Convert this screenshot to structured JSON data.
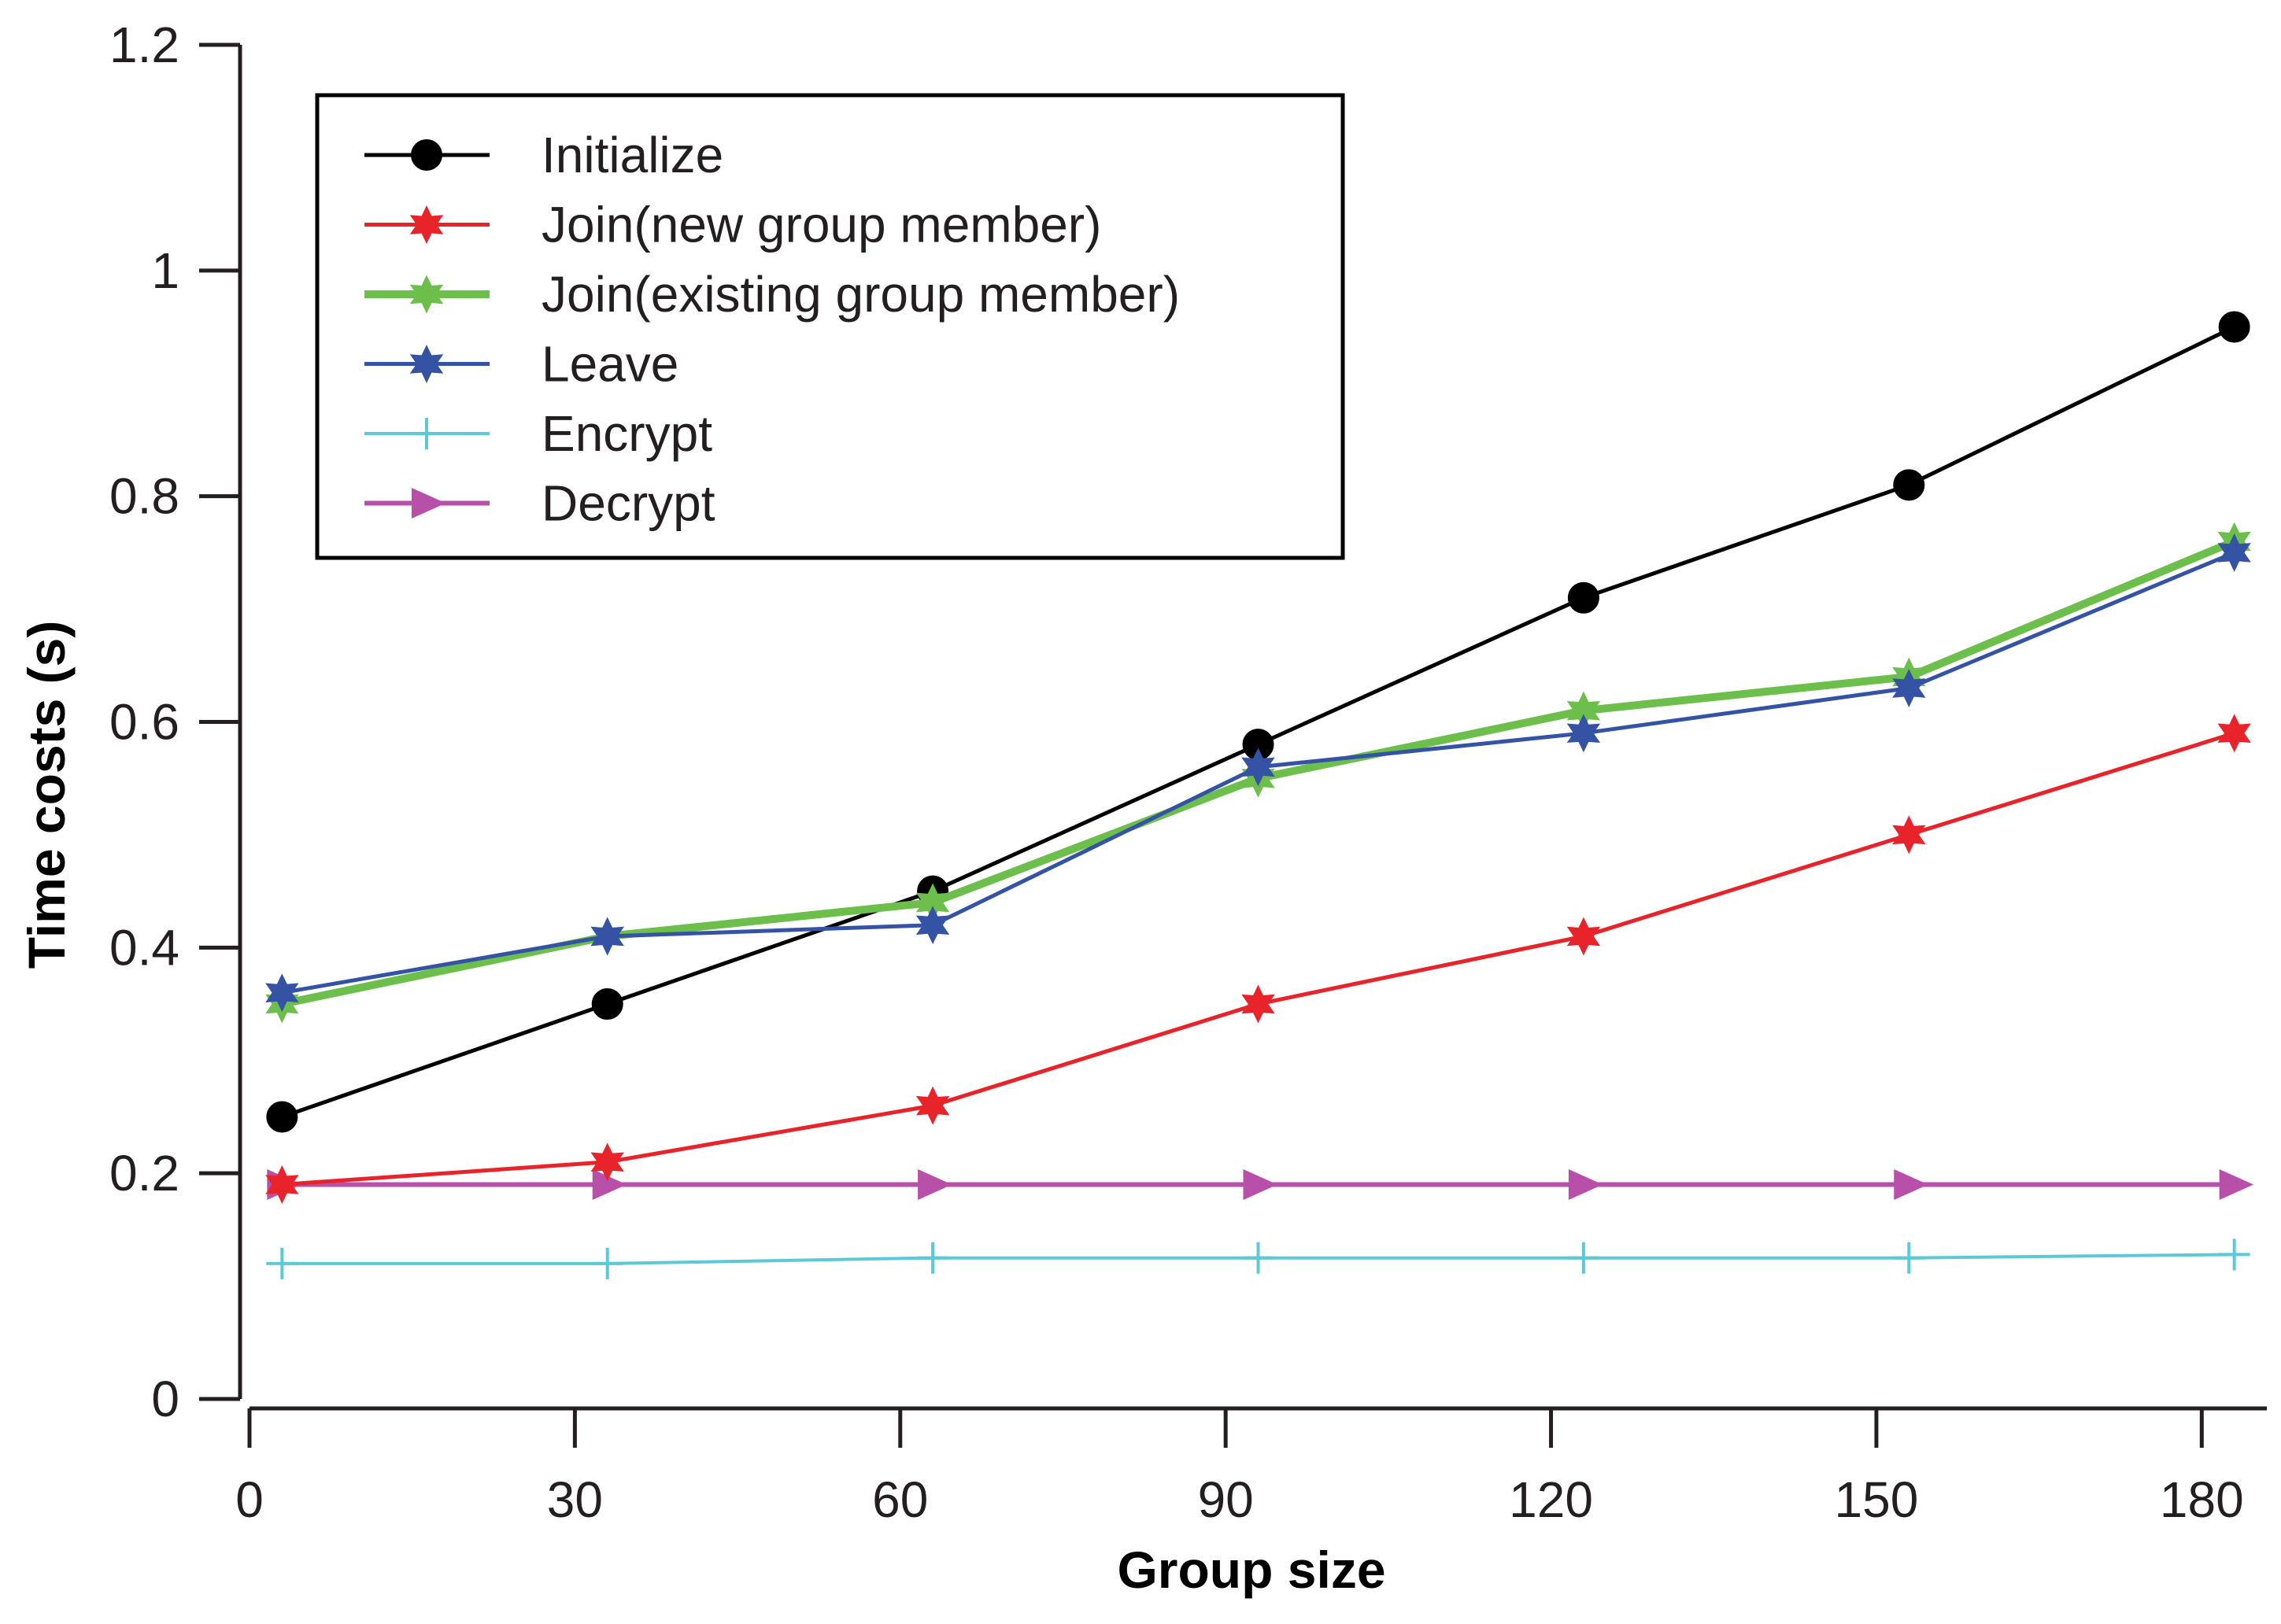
{
  "chart_data": {
    "type": "line",
    "title": "",
    "xlabel": "Group size",
    "ylabel": "Time costs (s)",
    "xlim": [
      0,
      186
    ],
    "ylim": [
      0,
      1.2
    ],
    "xticks": [
      0,
      30,
      60,
      90,
      120,
      150,
      180
    ],
    "yticks": [
      0,
      0.2,
      0.4,
      0.6,
      0.8,
      1,
      1.2
    ],
    "xtick_labels": [
      "0",
      "30",
      "60",
      "90",
      "120",
      "150",
      "180"
    ],
    "ytick_labels": [
      "0",
      "0.2",
      "0.4",
      "0.6",
      "0.8",
      "1",
      "1.2"
    ],
    "legend_position": "top-left",
    "x": [
      3,
      33,
      63,
      93,
      123,
      153,
      183
    ],
    "series": [
      {
        "name": "Initialize",
        "color": "#000000",
        "marker": "circle",
        "values": [
          0.25,
          0.35,
          0.45,
          0.58,
          0.71,
          0.81,
          0.95
        ]
      },
      {
        "name": "Join(new group member)",
        "color": "#e8232a",
        "marker": "star",
        "values": [
          0.19,
          0.21,
          0.26,
          0.35,
          0.41,
          0.5,
          0.59
        ]
      },
      {
        "name": "Join(existing group member)",
        "color": "#6cbf4a",
        "marker": "star",
        "values": [
          0.35,
          0.41,
          0.44,
          0.55,
          0.61,
          0.64,
          0.76
        ]
      },
      {
        "name": "Leave",
        "color": "#3553a4",
        "marker": "star",
        "values": [
          0.36,
          0.41,
          0.42,
          0.56,
          0.59,
          0.63,
          0.75
        ]
      },
      {
        "name": "Encrypt",
        "color": "#5bc9d6",
        "marker": "plus",
        "values": [
          0.12,
          0.12,
          0.125,
          0.125,
          0.125,
          0.125,
          0.128
        ]
      },
      {
        "name": "Decrypt",
        "color": "#b84fa9",
        "marker": "triangle-right",
        "values": [
          0.19,
          0.19,
          0.19,
          0.19,
          0.19,
          0.19,
          0.19
        ]
      }
    ]
  }
}
